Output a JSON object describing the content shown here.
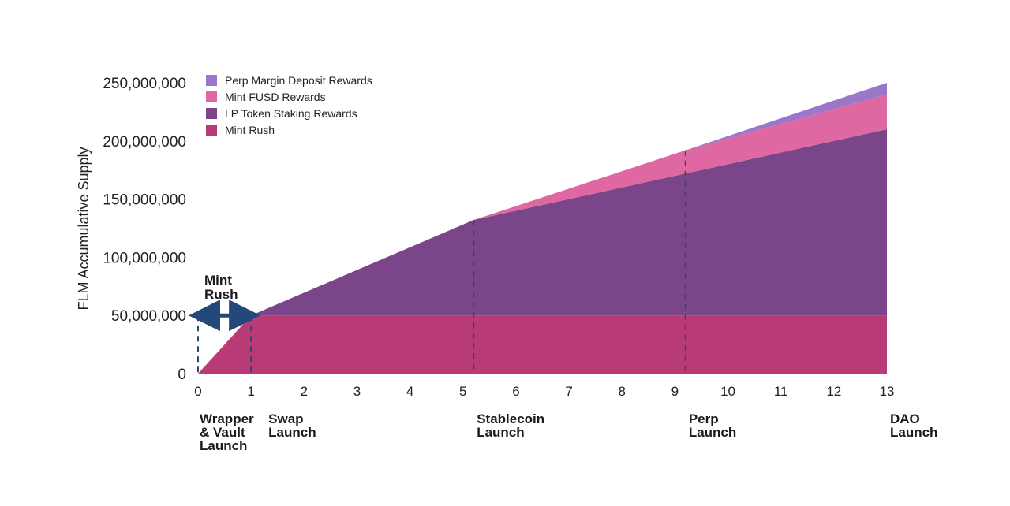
{
  "chart_data": {
    "type": "area",
    "stacked": true,
    "ylabel": "FLM Accumulative Supply",
    "xlabel": "",
    "ylim": [
      0,
      250000000
    ],
    "xlim": [
      0,
      13
    ],
    "y_ticks": [
      "0",
      "50,000,000",
      "100,000,000",
      "150,000,000",
      "200,000,000",
      "250,000,000"
    ],
    "y_tick_values": [
      0,
      50000000,
      100000000,
      150000000,
      200000000,
      250000000
    ],
    "x_ticks": [
      "0",
      "1",
      "2",
      "3",
      "4",
      "5",
      "6",
      "7",
      "8",
      "9",
      "10",
      "11",
      "12",
      "13"
    ],
    "x_tick_values": [
      0,
      1,
      2,
      3,
      4,
      5,
      6,
      7,
      8,
      9,
      10,
      11,
      12,
      13
    ],
    "grid": false,
    "legend_position": "top-left",
    "series": [
      {
        "name": "Mint Rush",
        "color": "#B83B76",
        "points": [
          [
            0,
            0
          ],
          [
            1,
            50000000
          ],
          [
            13,
            50000000
          ]
        ]
      },
      {
        "name": "LP Token Staking Rewards",
        "color": "#7A4689",
        "points": [
          [
            0,
            0
          ],
          [
            1,
            0
          ],
          [
            5.2,
            82000000
          ],
          [
            9.2,
            122000000
          ],
          [
            13,
            160000000
          ]
        ]
      },
      {
        "name": "Mint FUSD Rewards",
        "color": "#DF67A2",
        "points": [
          [
            0,
            0
          ],
          [
            5.2,
            0
          ],
          [
            9.2,
            20000000
          ],
          [
            13,
            30000000
          ]
        ]
      },
      {
        "name": "Perp Margin Deposit Rewards",
        "color": "#9B77CA",
        "points": [
          [
            0,
            0
          ],
          [
            9.2,
            0
          ],
          [
            13,
            10000000
          ]
        ]
      }
    ],
    "legend": [
      {
        "label": "Perp Margin Deposit Rewards",
        "color": "#9B77CA"
      },
      {
        "label": "Mint FUSD Rewards",
        "color": "#DF67A2"
      },
      {
        "label": "LP Token Staking Rewards",
        "color": "#7A4689"
      },
      {
        "label": "Mint Rush",
        "color": "#B83B76"
      }
    ],
    "milestones": [
      {
        "x": 0,
        "lines": [
          "Wrapper",
          "& Vault",
          "Launch"
        ]
      },
      {
        "x": 1,
        "lines": [
          "Swap",
          "Launch"
        ]
      },
      {
        "x": 5.2,
        "lines": [
          "Stablecoin",
          "Launch"
        ]
      },
      {
        "x": 9.2,
        "lines": [
          "Perp",
          "Launch"
        ]
      },
      {
        "x": 13,
        "lines": [
          "DAO",
          "Launch"
        ]
      }
    ],
    "annotation": {
      "lines": [
        "Mint",
        "Rush"
      ],
      "from_x": 0,
      "to_x": 1,
      "y": 50000000,
      "arrow_color": "#22497A",
      "dash_color": "#22497A"
    }
  }
}
